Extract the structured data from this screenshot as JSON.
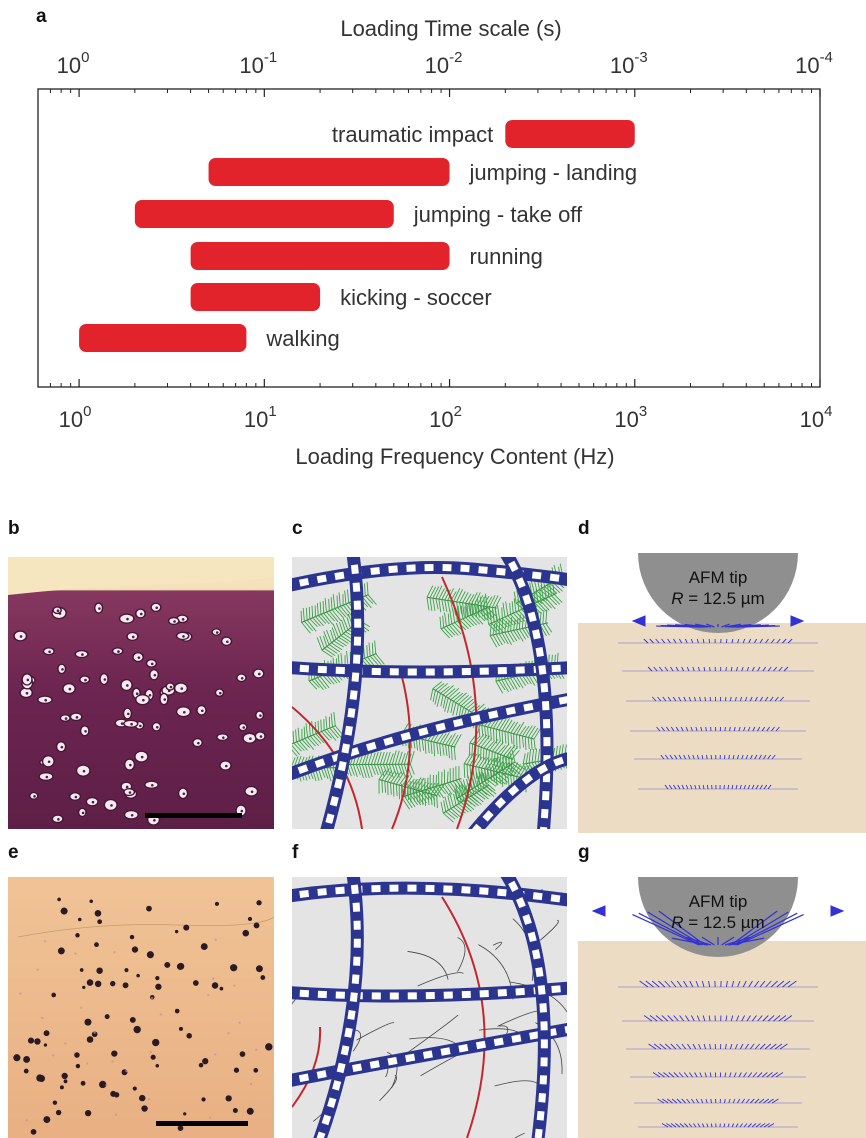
{
  "panel_labels": {
    "a": "a",
    "b": "b",
    "c": "c",
    "d": "d",
    "e": "e",
    "f": "f",
    "g": "g"
  },
  "chart_data": {
    "type": "bar",
    "subtype": "horizontal-range",
    "xlabel": "Loading Frequency Content (Hz)",
    "x2label": "Loading Time scale (s)",
    "xscale": "log",
    "xlim": [
      0.6,
      10000
    ],
    "x_ticks": [
      {
        "value": 1,
        "base": "10",
        "exp": "0"
      },
      {
        "value": 10,
        "base": "10",
        "exp": "1"
      },
      {
        "value": 100,
        "base": "10",
        "exp": "2"
      },
      {
        "value": 1000,
        "base": "10",
        "exp": "3"
      },
      {
        "value": 10000,
        "base": "10",
        "exp": "4"
      }
    ],
    "x2_ticks": [
      {
        "value": 1,
        "base": "10",
        "exp": "0"
      },
      {
        "value": 10,
        "base": "10",
        "exp": "-1"
      },
      {
        "value": 100,
        "base": "10",
        "exp": "-2"
      },
      {
        "value": 1000,
        "base": "10",
        "exp": "-3"
      },
      {
        "value": 10000,
        "base": "10",
        "exp": "-4"
      }
    ],
    "bar_color": "#e3232c",
    "bars": [
      {
        "name": "traumatic impact",
        "start": 200,
        "end": 1000,
        "label_side": "left"
      },
      {
        "name": "jumping - landing",
        "start": 5,
        "end": 100,
        "label_side": "right"
      },
      {
        "name": "jumping - take off",
        "start": 2,
        "end": 50,
        "label_side": "right"
      },
      {
        "name": "running",
        "start": 4,
        "end": 100,
        "label_side": "right"
      },
      {
        "name": "kicking - soccer",
        "start": 4,
        "end": 20,
        "label_side": "right"
      },
      {
        "name": "walking",
        "start": 1,
        "end": 8,
        "label_side": "right"
      }
    ]
  },
  "afm_d": {
    "title": "AFM tip",
    "radius_label": "R = 12.5 µm",
    "r_symbol": "R",
    "r_value": " = 12.5 µm"
  },
  "afm_g": {
    "title": "AFM tip",
    "radius_label": "R = 12.5 µm",
    "r_symbol": "R",
    "r_value": " = 12.5 µm"
  },
  "colors": {
    "tissue_b": "#6e2751",
    "tissue_e": "#f1c494",
    "collagen_blue": "#2b3590",
    "proteoglycan_green": "#3aa346",
    "substrate": "#ecdcc4",
    "tip_gray": "#8f8f8f",
    "arrow_blue": "#3131d6"
  }
}
